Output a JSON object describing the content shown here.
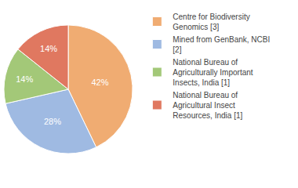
{
  "chart_data": {
    "type": "pie",
    "categories": [
      "Centre for Biodiversity Genomics [3]",
      "Mined from GenBank, NCBI [2]",
      "National Bureau of Agriculturally Important Insects, India [1]",
      "National Bureau of Agricultural Insect Resources, India [1]"
    ],
    "values": [
      42,
      28,
      14,
      14
    ],
    "value_labels": [
      "42%",
      "28%",
      "14%",
      "14%"
    ],
    "colors": [
      "#f0ac72",
      "#9fbae2",
      "#a3c878",
      "#e07860"
    ],
    "data_labels": true,
    "legend": "right"
  }
}
